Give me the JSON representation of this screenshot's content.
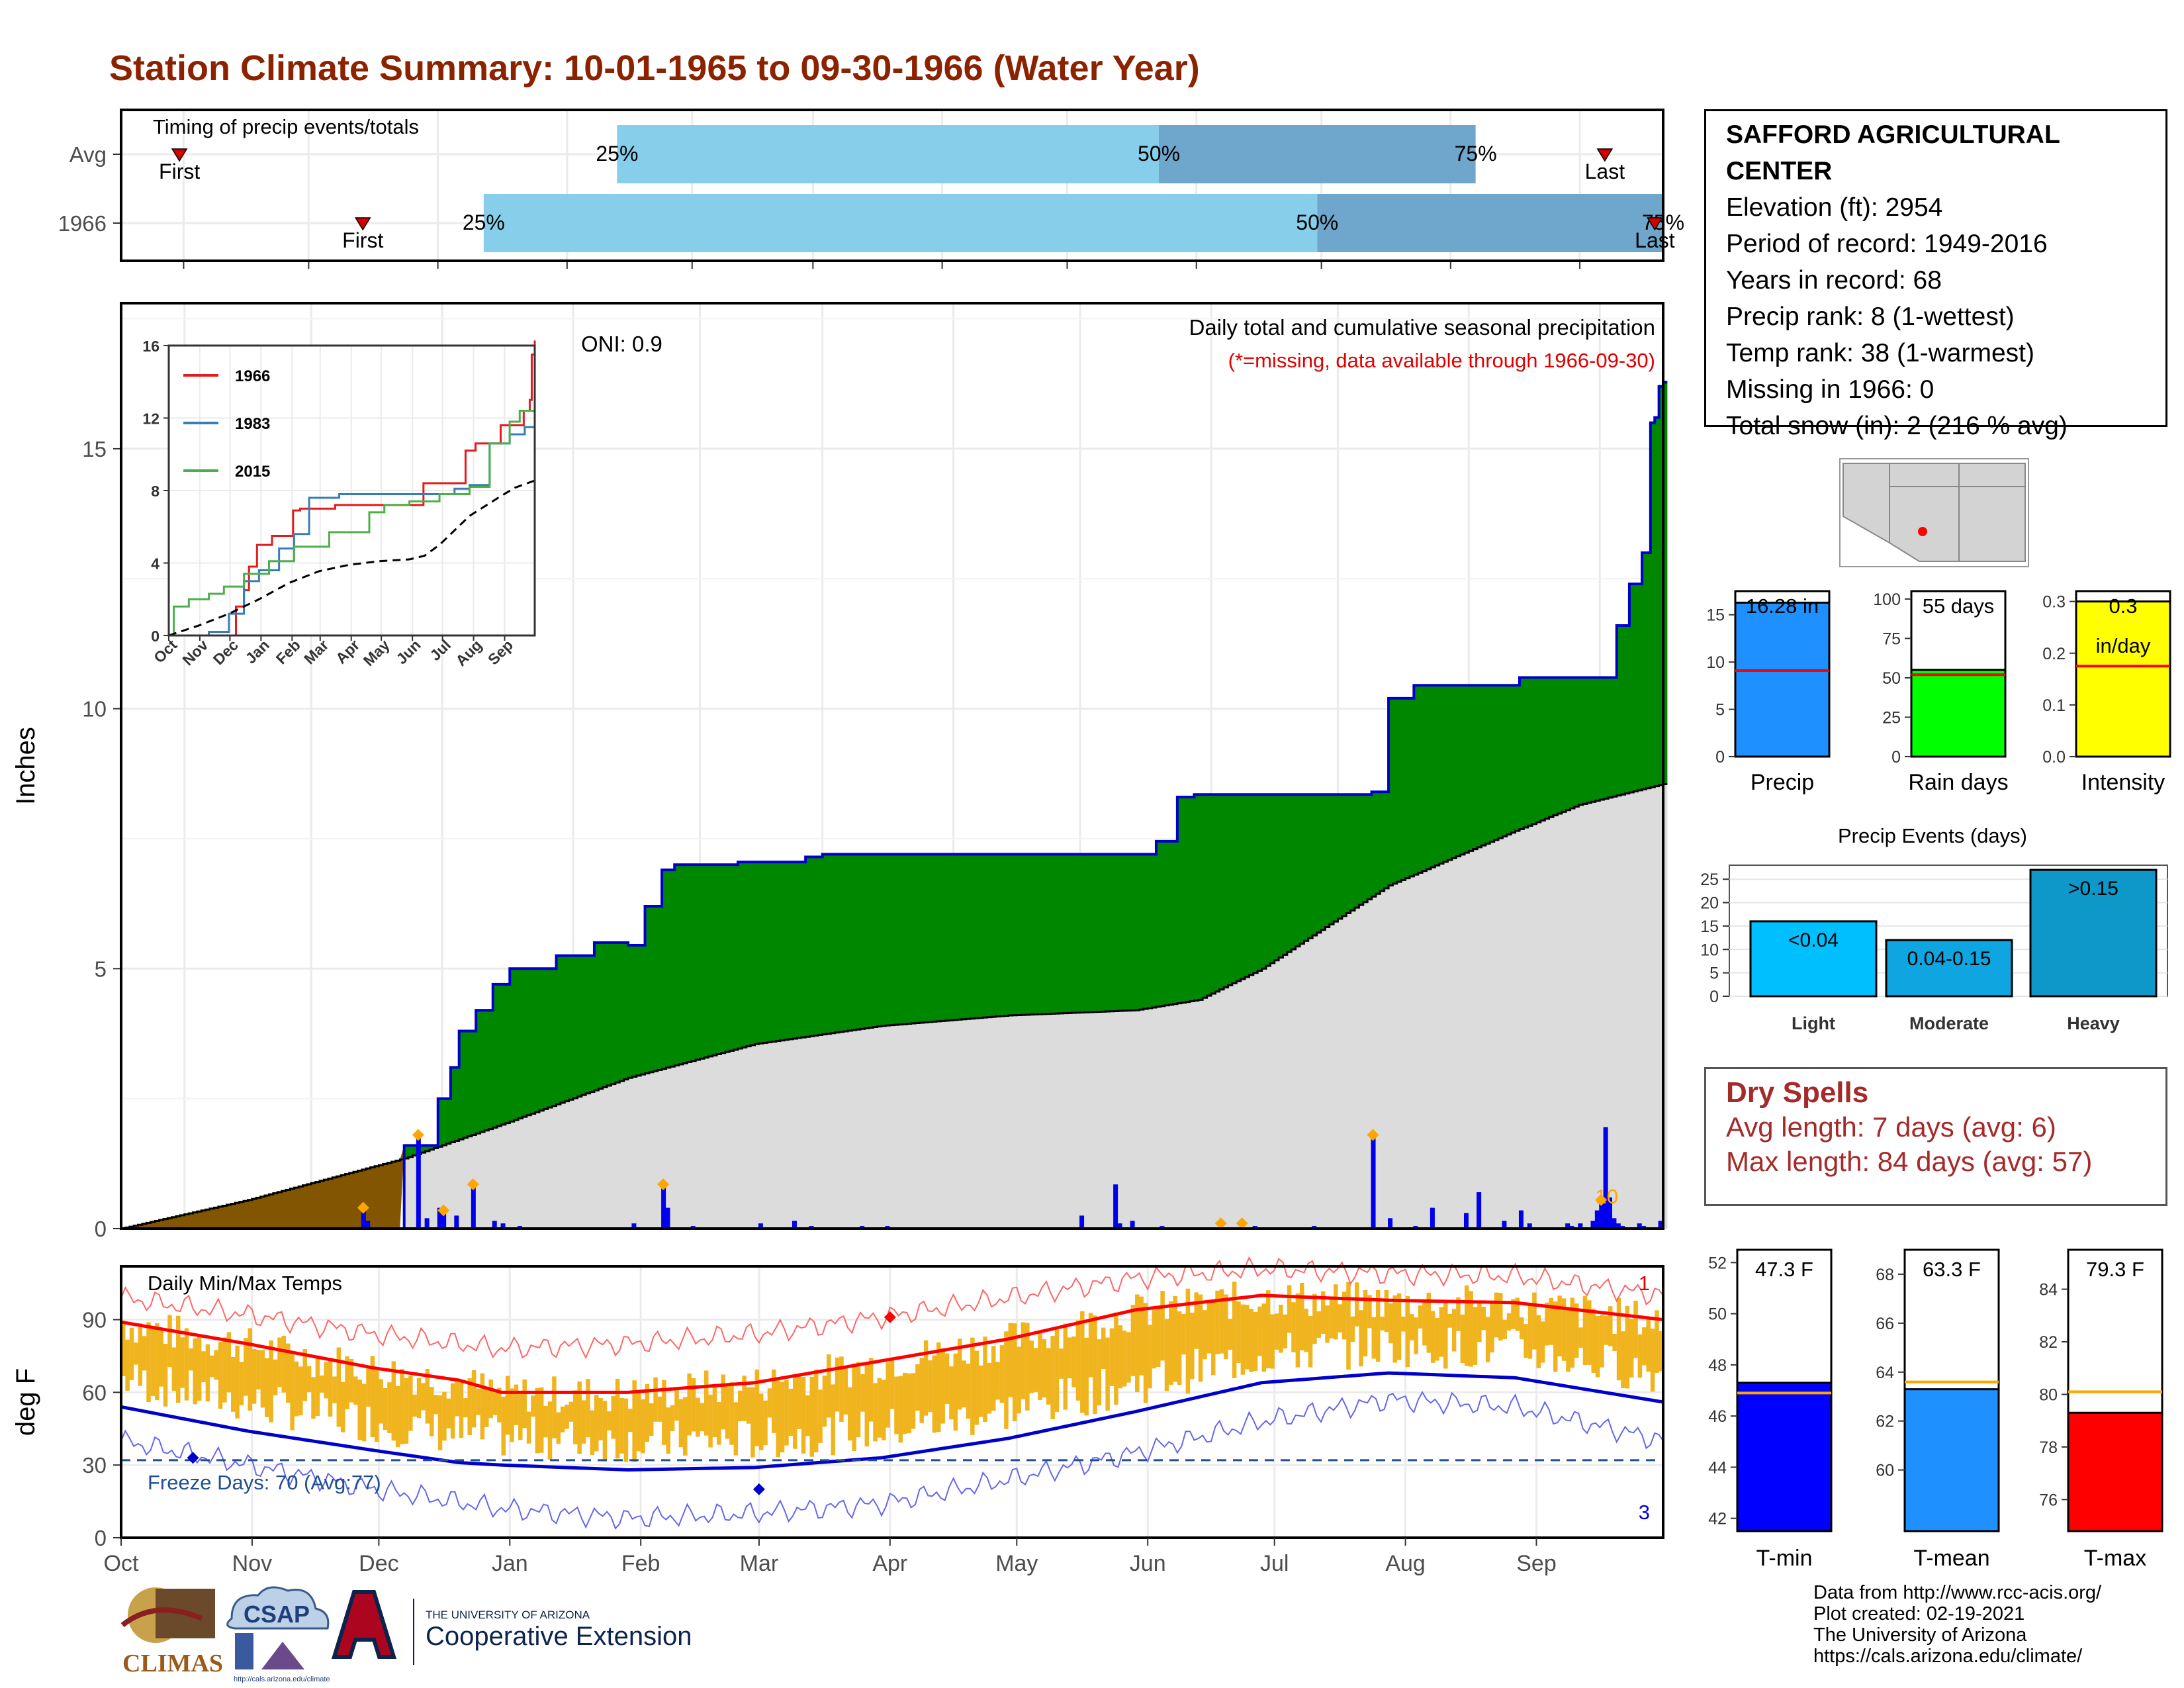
{
  "title": "Station Climate Summary: 10-01-1965 to 09-30-1966 (Water Year)",
  "station": {
    "name_line1": "SAFFORD AGRICULTURAL",
    "name_line2": "CENTER",
    "elevation": "Elevation (ft): 2954",
    "period": "Period of record: 1949-2016",
    "years": "Years in record: 68",
    "precip_rank": "Precip rank: 8 (1-wettest)",
    "temp_rank": "Temp rank: 38 (1-warmest)",
    "missing": "Missing in 1966: 0",
    "snow": "Total snow (in): 2 (216 % avg)"
  },
  "timing": {
    "label": "Timing of precip events/totals",
    "rows": [
      {
        "name": "Avg",
        "first_doy": 14,
        "last_doy": 356,
        "q25": 119,
        "q50": 249,
        "q75": 325,
        "first_label": "First",
        "last_label": "Last"
      },
      {
        "name": "1966",
        "first_doy": 58,
        "last_doy": 368,
        "q25": 87,
        "q50": 287,
        "q75": 370,
        "first_label": "First",
        "last_label": "Last"
      }
    ],
    "pct_labels": [
      "25%",
      "50%",
      "75%"
    ]
  },
  "precip_panel": {
    "ylabel": "Inches",
    "header": "Daily total and cumulative seasonal precipitation",
    "missing_note": "(*=missing, data available through 1966-09-30)",
    "oni": "ONI: 0.9",
    "corner_count": "10",
    "yticks": [
      "0",
      "5",
      "10",
      "15"
    ]
  },
  "temp_panel": {
    "ylabel": "deg F",
    "header": "Daily Min/Max Temps",
    "freeze": "Freeze Days: 70 (Avg:77)",
    "count_max": "1",
    "count_min": "3",
    "yticks": [
      "0",
      "30",
      "60",
      "90"
    ]
  },
  "months": [
    "Oct",
    "Nov",
    "Dec",
    "Jan",
    "Feb",
    "Mar",
    "Apr",
    "May",
    "Jun",
    "Jul",
    "Aug",
    "Sep"
  ],
  "chart_data": [
    {
      "type": "area",
      "title": "Daily total and cumulative seasonal precipitation",
      "ylabel": "Inches",
      "ylim": [
        0,
        17.8
      ],
      "cumulative_observed": {
        "doy": [
          0,
          66,
          67,
          75,
          78,
          80,
          84,
          88,
          92,
          103,
          112,
          120,
          124,
          128,
          131,
          146,
          162,
          166,
          220,
          245,
          250,
          254,
          296,
          300,
          306,
          331,
          354,
          357,
          360,
          362,
          363,
          364,
          365
        ],
        "in": [
          0.0,
          0.0,
          1.6,
          2.5,
          3.1,
          3.8,
          4.2,
          4.7,
          5.0,
          5.25,
          5.5,
          5.45,
          6.2,
          6.9,
          7.0,
          7.05,
          7.15,
          7.2,
          7.2,
          7.45,
          8.3,
          8.35,
          8.4,
          10.2,
          10.45,
          10.6,
          11.6,
          12.4,
          13.0,
          15.5,
          15.6,
          16.2,
          16.28
        ]
      },
      "cumulative_average": {
        "doy": [
          0,
          30,
          60,
          67,
          90,
          120,
          150,
          180,
          210,
          240,
          255,
          270,
          300,
          330,
          345,
          365
        ],
        "in": [
          0,
          0.55,
          1.2,
          1.35,
          2.0,
          2.9,
          3.55,
          3.9,
          4.1,
          4.2,
          4.4,
          5.0,
          6.6,
          7.65,
          8.15,
          8.55
        ]
      },
      "daily_precip": {
        "doy": [
          57,
          58,
          70,
          72,
          75,
          76,
          79,
          83,
          88,
          90,
          94,
          121,
          128,
          129,
          135,
          151,
          159,
          163,
          175,
          181,
          227,
          235,
          236,
          239,
          246,
          268,
          282,
          296,
          300,
          306,
          310,
          318,
          321,
          327,
          331,
          333,
          342,
          343,
          345,
          348,
          349,
          350,
          351,
          352,
          353,
          354,
          355,
          359,
          360,
          364
        ],
        "in": [
          0.35,
          0.15,
          1.75,
          0.2,
          0.4,
          0.3,
          0.25,
          0.8,
          0.15,
          0.1,
          0.05,
          0.1,
          0.8,
          0.4,
          0.05,
          0.1,
          0.15,
          0.05,
          0.05,
          0.05,
          0.25,
          0.85,
          0.1,
          0.15,
          0.05,
          0.05,
          0.05,
          1.75,
          0.2,
          0.05,
          0.4,
          0.3,
          0.7,
          0.15,
          0.35,
          0.1,
          0.1,
          0.05,
          0.1,
          0.15,
          0.35,
          0.5,
          1.95,
          0.6,
          0.2,
          0.1,
          0.05,
          0.1,
          0.05,
          0.15
        ]
      },
      "flagged_days": [
        57,
        70,
        76,
        83,
        128,
        260,
        265,
        296,
        350
      ]
    },
    {
      "type": "line",
      "title": "",
      "xlabel": "",
      "ylim": [
        0,
        16
      ],
      "yticks": [
        "0",
        "4",
        "8",
        "12",
        "16"
      ],
      "xticks": [
        "Oct",
        "Nov",
        "Dec",
        "Jan",
        "Feb",
        "Mar",
        "Apr",
        "May",
        "Jun",
        "Jul",
        "Aug",
        "Sep"
      ],
      "series": [
        {
          "name": "1966",
          "color": "#e41a1c",
          "doy": [
            0,
            66,
            67,
            75,
            80,
            88,
            103,
            124,
            131,
            166,
            254,
            296,
            306,
            331,
            354,
            360,
            362,
            365
          ],
          "in": [
            0,
            0,
            1.6,
            2.5,
            3.8,
            5.0,
            5.5,
            6.9,
            7.0,
            7.2,
            8.4,
            10.2,
            10.6,
            11.6,
            12.4,
            13.0,
            15.5,
            16.28
          ]
        },
        {
          "name": "1983",
          "color": "#377eb8",
          "doy": [
            0,
            20,
            40,
            60,
            75,
            90,
            110,
            125,
            140,
            170,
            210,
            260,
            285,
            300,
            320,
            340,
            355,
            365
          ],
          "in": [
            0,
            0,
            0.2,
            1.2,
            3.0,
            3.6,
            4.8,
            5.6,
            7.6,
            7.8,
            7.8,
            7.8,
            8.1,
            8.3,
            10.6,
            11.1,
            11.5,
            13.0
          ]
        },
        {
          "name": "2015",
          "color": "#4daf4a",
          "doy": [
            0,
            5,
            20,
            40,
            55,
            75,
            100,
            125,
            160,
            200,
            215,
            240,
            270,
            300,
            320,
            340,
            350,
            365
          ],
          "in": [
            0,
            1.6,
            2.0,
            2.3,
            2.7,
            3.4,
            4.1,
            4.9,
            5.7,
            6.8,
            7.2,
            7.4,
            7.8,
            8.2,
            10.6,
            11.8,
            12.4,
            13.2
          ]
        },
        {
          "name": "",
          "color": "#000000",
          "dash": true,
          "doy": [
            0,
            30,
            60,
            90,
            120,
            150,
            180,
            210,
            240,
            255,
            270,
            300,
            330,
            345,
            365
          ],
          "in": [
            0,
            0.55,
            1.2,
            2.0,
            2.9,
            3.55,
            3.9,
            4.1,
            4.2,
            4.4,
            5.0,
            6.6,
            7.65,
            8.15,
            8.55
          ]
        }
      ]
    },
    {
      "type": "bar",
      "title": "",
      "panels": [
        {
          "category": "Precip",
          "value": 16.28,
          "avg": 9.1,
          "ymax": 17.5,
          "ticks": [
            0,
            5,
            10,
            15
          ],
          "color": "#1e90ff",
          "label": "16.28 in",
          "label2": ""
        },
        {
          "category": "Rain days",
          "value": 55,
          "avg": 52,
          "ymax": 105,
          "ticks": [
            0,
            25,
            50,
            75,
            100
          ],
          "color": "#00ff00",
          "label": "55 days",
          "label2": ""
        },
        {
          "category": "Intensity",
          "value": 0.3,
          "avg": 0.175,
          "ymax": 0.32,
          "ticks": [
            0.0,
            0.1,
            0.2,
            0.3
          ],
          "color": "#ffff00",
          "label": "0.3",
          "label2": "in/day"
        }
      ]
    },
    {
      "type": "bar",
      "title": "Precip Events (days)",
      "categories": [
        "Light",
        "Moderate",
        "Heavy"
      ],
      "values": [
        16,
        12,
        27
      ],
      "bar_labels": [
        "<0.04",
        "0.04-0.15",
        ">0.15"
      ],
      "colors": [
        "#00bfff",
        "#0ea5e0",
        "#0d98c9"
      ],
      "ylim": [
        0,
        28
      ],
      "yticks": [
        0,
        5,
        10,
        15,
        20,
        25
      ]
    },
    {
      "type": "line",
      "title": "Daily Min/Max Temps",
      "ylabel": "deg F",
      "ylim": [
        0,
        112
      ],
      "series": [
        {
          "name": "",
          "role": "avg_max",
          "color": "#ff0000",
          "doy": [
            0,
            30,
            60,
            80,
            90,
            120,
            150,
            180,
            210,
            240,
            270,
            300,
            330,
            365
          ],
          "degF": [
            89,
            80,
            70,
            65,
            60,
            60,
            64,
            73,
            82,
            94,
            100,
            98,
            97,
            90
          ]
        },
        {
          "name": "",
          "role": "avg_min",
          "color": "#0000cd",
          "doy": [
            0,
            30,
            60,
            80,
            90,
            120,
            150,
            180,
            210,
            240,
            270,
            300,
            330,
            365
          ],
          "degF": [
            54,
            44,
            36,
            31,
            30,
            28,
            29,
            33,
            41,
            52,
            64,
            68,
            66,
            56
          ]
        },
        {
          "name": "",
          "role": "record_max",
          "color": "#ff6666",
          "doy": [
            0,
            30,
            60,
            90,
            120,
            150,
            180,
            210,
            240,
            270,
            300,
            330,
            365
          ],
          "degF": [
            99,
            92,
            84,
            78,
            80,
            84,
            91,
            99,
            107,
            111,
            109,
            108,
            100
          ]
        },
        {
          "name": "",
          "role": "record_min",
          "color": "#6666ee",
          "doy": [
            0,
            30,
            60,
            90,
            120,
            150,
            180,
            210,
            240,
            270,
            300,
            330,
            365
          ],
          "degF": [
            40,
            30,
            20,
            12,
            8,
            10,
            14,
            24,
            35,
            48,
            57,
            54,
            40
          ]
        }
      ],
      "freeze_threshold": 32,
      "record_markers": [
        {
          "doy": 182,
          "degF": 91,
          "color": "#ff0000"
        },
        {
          "doy": 17,
          "degF": 33,
          "color": "#0000cd"
        },
        {
          "doy": 151,
          "degF": 20,
          "color": "#0000cd"
        }
      ]
    },
    {
      "type": "bar",
      "title": "",
      "panels": [
        {
          "category": "T-min",
          "value": 47.3,
          "avg": 46.9,
          "ylim": [
            41.5,
            52.5
          ],
          "ticks": [
            42,
            44,
            46,
            48,
            50,
            52
          ],
          "color": "#0000ff",
          "label": "47.3 F"
        },
        {
          "category": "T-mean",
          "value": 63.3,
          "avg": 63.6,
          "ylim": [
            57.5,
            69.0
          ],
          "ticks": [
            60,
            62,
            64,
            66,
            68
          ],
          "color": "#1e90ff",
          "label": "63.3 F"
        },
        {
          "category": "T-max",
          "value": 79.3,
          "avg": 80.1,
          "ylim": [
            74.8,
            85.5
          ],
          "ticks": [
            76,
            78,
            80,
            82,
            84
          ],
          "color": "#ff0000",
          "label": "79.3 F"
        }
      ]
    }
  ],
  "map": {
    "station_dot_color": "#ff0000"
  },
  "dry_spells": {
    "title": "Dry Spells",
    "avg": "Avg length: 7 days (avg: 6)",
    "max": "Max length: 84 days (avg: 57)"
  },
  "footer": [
    "Data from http://www.rcc-acis.org/",
    "Plot created: 02-19-2021",
    "The University of Arizona",
    "https://cals.arizona.edu/climate/"
  ],
  "logos": {
    "climas": "CLIMAS",
    "csap": "CSAP",
    "csap_url": "http://cals.arizona.edu/climate",
    "ua_line1": "THE UNIVERSITY OF ARIZONA",
    "ua_line2": "Cooperative Extension"
  }
}
